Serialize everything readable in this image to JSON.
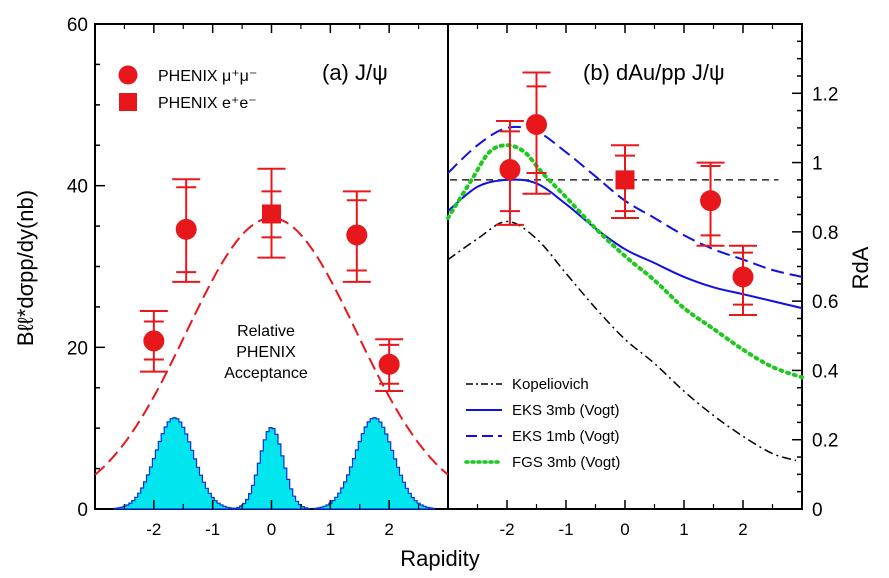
{
  "colors": {
    "data": "#e8171c",
    "fit": "#e8171c",
    "acceptance_fill": "#00e5ee",
    "acceptance_edge": "#0a2fd8",
    "acceptance_text": "#1a1adf",
    "eks3": "#1010e6",
    "eks1": "#1010e6",
    "fgs": "#1ec81e",
    "kopel": "#000000",
    "axis": "#000000"
  },
  "shared": {
    "xlabel": "Rapidity",
    "xlim": [
      -3,
      3
    ],
    "xticks": [
      "-2",
      "-1",
      "0",
      "1",
      "2"
    ]
  },
  "chart_data": [
    {
      "type": "scatter",
      "panel_label": "(a) J/ψ",
      "ylabel": "Bℓℓ*dσpp/dy(nb)",
      "ylim": [
        0,
        60
      ],
      "yticks": [
        "0",
        "20",
        "40",
        "60"
      ],
      "legend": [
        "PHENIX μ⁺μ⁻",
        "PHENIX e⁺e⁻"
      ],
      "series": [
        {
          "name": "PHENIX μ⁺μ⁻",
          "marker": "circle",
          "points": [
            {
              "x": -2.0,
              "y": 20.8,
              "stat": [
                18.5,
                23.2
              ],
              "sys": [
                17.0,
                24.5
              ]
            },
            {
              "x": -1.45,
              "y": 34.6,
              "stat": [
                29.3,
                39.8
              ],
              "sys": [
                28.1,
                40.8
              ]
            },
            {
              "x": 1.45,
              "y": 33.9,
              "stat": [
                29.5,
                38.2
              ],
              "sys": [
                28.1,
                39.3
              ]
            },
            {
              "x": 2.0,
              "y": 17.9,
              "stat": [
                15.5,
                20.3
              ],
              "sys": [
                14.6,
                21.0
              ]
            }
          ]
        },
        {
          "name": "PHENIX e⁺e⁻",
          "marker": "square",
          "points": [
            {
              "x": 0.0,
              "y": 36.5,
              "stat": [
                33.6,
                39.3
              ],
              "sys": [
                31.1,
                42.1
              ]
            }
          ]
        }
      ],
      "fit_curve": {
        "style": "dashed",
        "peak_y": 36.0,
        "sigma": 1.45
      },
      "acceptance": {
        "label": [
          "Relative",
          "PHENIX",
          "Acceptance"
        ],
        "peaks": [
          {
            "center": -1.65,
            "height": 11.3,
            "width": 0.32
          },
          {
            "center": 0.0,
            "height": 10.1,
            "width": 0.2
          },
          {
            "center": 1.75,
            "height": 11.3,
            "width": 0.32
          }
        ]
      }
    },
    {
      "type": "scatter",
      "panel_label": "(b) dAu/pp  J/ψ",
      "ylabel": "RdA",
      "ylim": [
        0,
        1.4
      ],
      "yticks": [
        "0",
        "0.2",
        "0.4",
        "0.6",
        "0.8",
        "1",
        "1.2"
      ],
      "reference_line": 0.95,
      "series": [
        {
          "name": "PHENIX μ⁺μ⁻",
          "marker": "circle",
          "points": [
            {
              "x": -1.95,
              "y": 0.98,
              "stat": [
                0.86,
                1.09
              ],
              "sys": [
                0.82,
                1.12
              ]
            },
            {
              "x": -1.5,
              "y": 1.11,
              "stat": [
                0.97,
                1.22
              ],
              "sys": [
                0.91,
                1.26
              ]
            },
            {
              "x": 1.45,
              "y": 0.89,
              "stat": [
                0.79,
                0.99
              ],
              "sys": [
                0.76,
                1.0
              ]
            },
            {
              "x": 2.0,
              "y": 0.67,
              "stat": [
                0.59,
                0.74
              ],
              "sys": [
                0.56,
                0.76
              ]
            }
          ]
        },
        {
          "name": "PHENIX e⁺e⁻",
          "marker": "square",
          "points": [
            {
              "x": 0.0,
              "y": 0.95,
              "stat": [
                0.86,
                1.02
              ],
              "sys": [
                0.84,
                1.05
              ]
            }
          ]
        }
      ],
      "theory": [
        {
          "name": "Kopeliovich",
          "style": "dashdot",
          "color_key": "kopel",
          "x": [
            -3,
            -2.5,
            -2.0,
            -1.5,
            -1.0,
            -0.5,
            0,
            0.5,
            1.0,
            1.5,
            2.0,
            2.5,
            2.9
          ],
          "y": [
            0.72,
            0.78,
            0.83,
            0.78,
            0.68,
            0.58,
            0.49,
            0.42,
            0.34,
            0.27,
            0.21,
            0.16,
            0.14
          ]
        },
        {
          "name": "EKS 3mb (Vogt)",
          "style": "solid",
          "color_key": "eks3",
          "x": [
            -3,
            -2.5,
            -2.0,
            -1.5,
            -1.0,
            -0.5,
            0,
            0.5,
            1.0,
            1.5,
            2.0,
            2.5,
            3.0
          ],
          "y": [
            0.86,
            0.93,
            0.95,
            0.94,
            0.88,
            0.81,
            0.75,
            0.71,
            0.67,
            0.64,
            0.62,
            0.6,
            0.58
          ]
        },
        {
          "name": "EKS 1mb (Vogt)",
          "style": "dashed",
          "color_key": "eks1",
          "x": [
            -3,
            -2.5,
            -2.0,
            -1.5,
            -1.0,
            -0.5,
            0,
            0.5,
            1.0,
            1.5,
            2.0,
            2.5,
            3.0
          ],
          "y": [
            0.97,
            1.05,
            1.1,
            1.09,
            1.03,
            0.96,
            0.89,
            0.84,
            0.79,
            0.75,
            0.72,
            0.69,
            0.67
          ]
        },
        {
          "name": "FGS 3mb (Vogt)",
          "style": "dotted",
          "color_key": "fgs",
          "x": [
            -3,
            -2.6,
            -2.3,
            -2.0,
            -1.7,
            -1.4,
            -1.0,
            -0.5,
            0,
            0.5,
            1.0,
            1.5,
            2.0,
            2.5,
            3.0
          ],
          "y": [
            0.84,
            0.95,
            1.03,
            1.05,
            1.03,
            0.97,
            0.9,
            0.81,
            0.73,
            0.66,
            0.58,
            0.52,
            0.46,
            0.41,
            0.38
          ]
        }
      ]
    }
  ]
}
